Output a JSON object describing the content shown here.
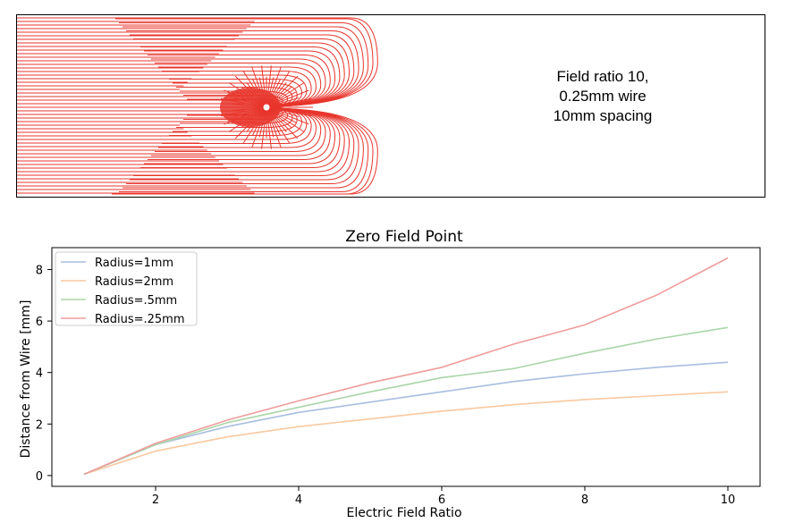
{
  "panel": {
    "lines": [
      "Field ratio 10,",
      "0.25mm wire",
      "10mm spacing"
    ],
    "line_color": "#e8352c"
  },
  "chart_data": {
    "type": "line",
    "title": "Zero Field Point",
    "xlabel": "Electric Field Ratio",
    "ylabel": "Distance from Wire [mm]",
    "x": [
      1,
      2,
      3,
      4,
      5,
      6,
      7,
      8,
      9,
      10
    ],
    "xticks": [
      2,
      4,
      6,
      8,
      10
    ],
    "yticks": [
      0,
      2,
      4,
      6,
      8
    ],
    "xlim": [
      0.55,
      10.45
    ],
    "ylim": [
      -0.42,
      8.85
    ],
    "grid": false,
    "legend_position": "top-left",
    "series": [
      {
        "name": "Radius=1mm",
        "color": "#a9bedf",
        "values": [
          0.05,
          1.2,
          1.9,
          2.45,
          2.85,
          3.25,
          3.65,
          3.95,
          4.2,
          4.4
        ]
      },
      {
        "name": "Radius=2mm",
        "color": "#f9c9a0",
        "values": [
          0.05,
          0.95,
          1.5,
          1.9,
          2.2,
          2.5,
          2.75,
          2.95,
          3.1,
          3.25
        ]
      },
      {
        "name": "Radius=.5mm",
        "color": "#aad5a9",
        "values": [
          0.05,
          1.2,
          2.05,
          2.65,
          3.25,
          3.8,
          4.15,
          4.75,
          5.3,
          5.75
        ]
      },
      {
        "name": "Radius=.25mm",
        "color": "#ef9d9c",
        "values": [
          0.05,
          1.25,
          2.15,
          2.9,
          3.6,
          4.2,
          5.1,
          5.85,
          7.0,
          8.45
        ]
      }
    ]
  }
}
